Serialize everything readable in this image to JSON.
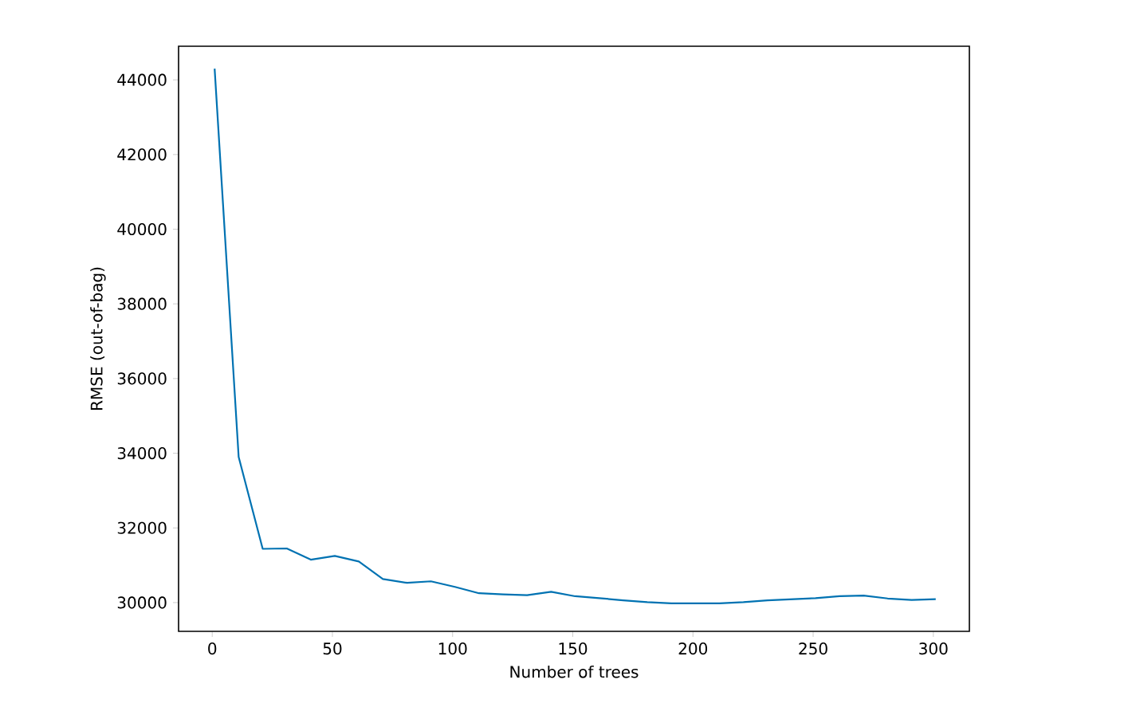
{
  "chart_data": {
    "type": "line",
    "xlabel": "Number of trees",
    "ylabel": "RMSE (out-of-bag)",
    "x": [
      1,
      11,
      21,
      31,
      41,
      51,
      61,
      71,
      81,
      91,
      101,
      111,
      121,
      131,
      141,
      151,
      161,
      171,
      181,
      191,
      201,
      211,
      221,
      231,
      241,
      251,
      261,
      271,
      281,
      291,
      301
    ],
    "series": [
      {
        "color": "#0072b2",
        "values": [
          44300,
          33900,
          31440,
          31450,
          31150,
          31250,
          31100,
          30630,
          30530,
          30570,
          30420,
          30250,
          30220,
          30200,
          30290,
          30170,
          30120,
          30060,
          30010,
          29980,
          29980,
          29980,
          30010,
          30060,
          30090,
          30120,
          30170,
          30190,
          30110,
          30070,
          30090
        ]
      }
    ],
    "xlim": [
      -14,
      315
    ],
    "ylim": [
      29230,
      44900
    ],
    "xticks": [
      0,
      50,
      100,
      150,
      200,
      250,
      300
    ],
    "yticks": [
      30000,
      32000,
      34000,
      36000,
      38000,
      40000,
      42000,
      44000
    ],
    "grid": false,
    "marker": "none",
    "line_style": "solid"
  }
}
